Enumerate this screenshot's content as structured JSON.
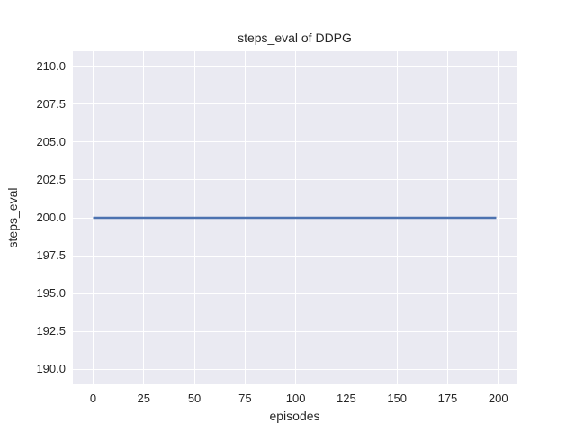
{
  "figure": {
    "background_color": "#ffffff"
  },
  "chart_data": {
    "type": "line",
    "title": "steps_eval of DDPG",
    "xlabel": "episodes",
    "ylabel": "steps_eval",
    "xlim": [
      -10,
      209
    ],
    "ylim": [
      189,
      211
    ],
    "xtick_values": [
      0,
      25,
      50,
      75,
      100,
      125,
      150,
      175,
      200
    ],
    "xtick_labels": [
      "0",
      "25",
      "50",
      "75",
      "100",
      "125",
      "150",
      "175",
      "200"
    ],
    "ytick_values": [
      190.0,
      192.5,
      195.0,
      197.5,
      200.0,
      202.5,
      205.0,
      207.5,
      210.0
    ],
    "ytick_labels": [
      "190.0",
      "192.5",
      "195.0",
      "197.5",
      "200.0",
      "202.5",
      "205.0",
      "207.5",
      "210.0"
    ],
    "grid": true,
    "legend_position": "none",
    "plot_background_color": "#eaeaf2",
    "grid_color": "#ffffff",
    "text_color": "#262626",
    "series": [
      {
        "name": "steps_eval of DDPG",
        "color": "#4c72b0",
        "x": [
          0,
          199
        ],
        "y": [
          200,
          200
        ]
      }
    ]
  }
}
